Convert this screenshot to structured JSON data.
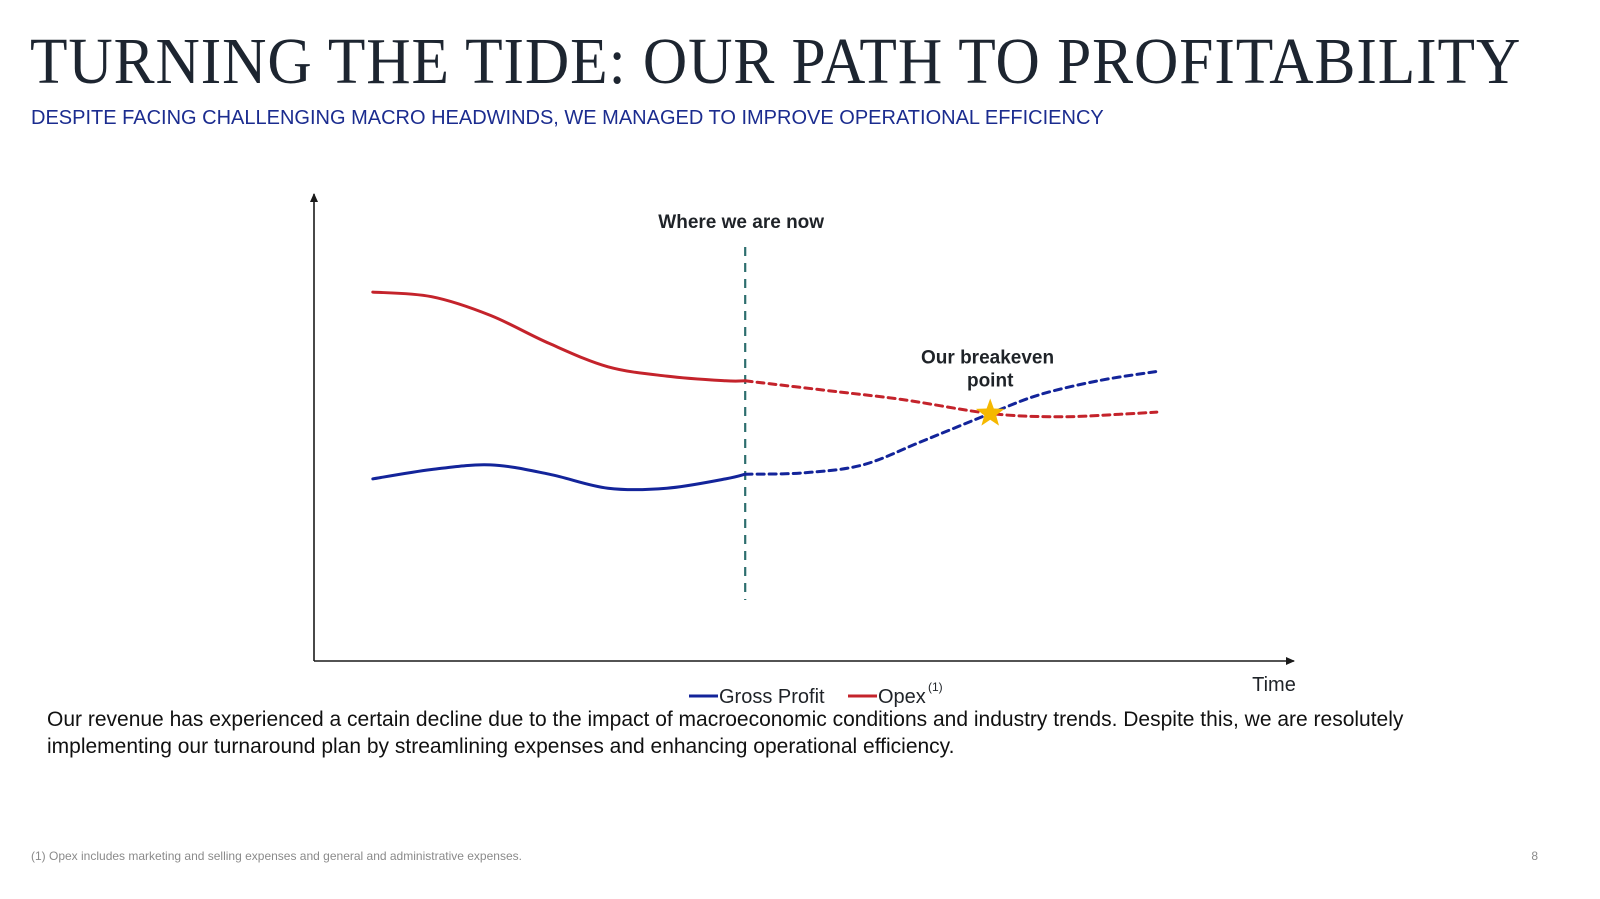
{
  "slide": {
    "title": "TURNING THE TIDE: OUR PATH TO PROFITABILITY",
    "subtitle": "DESPITE FACING CHALLENGING MACRO HEADWINDS, WE MANAGED TO IMPROVE OPERATIONAL EFFICIENCY",
    "body": "Our revenue has experienced a certain decline due to the impact of macroeconomic conditions and industry trends. Despite this, we are resolutely implementing our turnaround plan by streamlining expenses and enhancing operational efficiency.",
    "footnote": "(1) Opex includes marketing and selling expenses and general and administrative expenses.",
    "page_number": "8"
  },
  "chart_data": {
    "type": "line",
    "title": "",
    "xlabel": "Time",
    "ylabel": "",
    "xlim": [
      0,
      100
    ],
    "ylim": [
      0,
      100
    ],
    "grid": false,
    "axis_ticks": "none",
    "legend_position": "bottom-center",
    "series": [
      {
        "name": "Gross Profit",
        "color": "#13249a",
        "actual": [
          [
            6,
            39
          ],
          [
            12,
            41
          ],
          [
            18,
            42
          ],
          [
            24,
            40
          ],
          [
            30,
            37
          ],
          [
            36,
            37
          ],
          [
            42,
            39
          ],
          [
            44,
            40
          ]
        ],
        "projected": [
          [
            44,
            40
          ],
          [
            50,
            40.3
          ],
          [
            56,
            42
          ],
          [
            62,
            47
          ],
          [
            69,
            53
          ],
          [
            74,
            57
          ],
          [
            80,
            60
          ],
          [
            86,
            62
          ]
        ]
      },
      {
        "name": "Opex",
        "name_superscript": "(1)",
        "color": "#c4232b",
        "actual": [
          [
            6,
            79
          ],
          [
            12,
            78
          ],
          [
            18,
            74
          ],
          [
            24,
            68
          ],
          [
            30,
            63
          ],
          [
            36,
            61
          ],
          [
            42,
            60
          ],
          [
            44,
            60
          ]
        ],
        "projected": [
          [
            44,
            60
          ],
          [
            52,
            58
          ],
          [
            60,
            56
          ],
          [
            69,
            53
          ],
          [
            76,
            52.3
          ],
          [
            82,
            52.8
          ],
          [
            86,
            53.3
          ]
        ]
      }
    ],
    "annotations": [
      {
        "type": "vertical_line",
        "x": 44,
        "label": "Where we are now",
        "color": "#2d6e6e",
        "style": "dashed"
      },
      {
        "type": "star_marker",
        "x": 69,
        "y": 53,
        "label_lines": [
          "Our breakeven",
          "point"
        ],
        "color": "#f5b800"
      }
    ]
  }
}
